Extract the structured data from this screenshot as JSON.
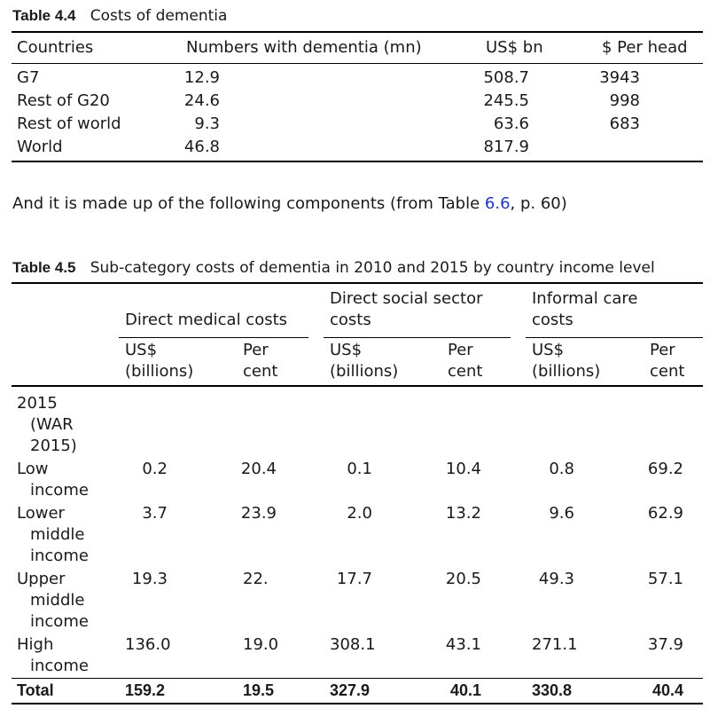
{
  "table44": {
    "label": "Table 4.4",
    "title": "Costs of dementia",
    "headers": [
      "Countries",
      "Numbers with dementia (mn)",
      "US$ bn",
      "$ Per head"
    ],
    "rows": [
      [
        "G7",
        "12.9",
        "508.7",
        "3943"
      ],
      [
        "Rest of G20",
        "24.6",
        "245.5",
        "998"
      ],
      [
        "Rest of world",
        "9.3",
        "63.6",
        "683"
      ],
      [
        "World",
        "46.8",
        "817.9",
        ""
      ]
    ]
  },
  "paragraph": {
    "before": "And it is made up of the following components (from Table ",
    "link": "6.6",
    "after": ", p. 60)"
  },
  "table45": {
    "label": "Table 4.5",
    "title": "Sub-category costs of dementia in 2010 and 2015 by country income level",
    "groups": [
      {
        "line1": "Direct medical costs",
        "line2": ""
      },
      {
        "line1": "Direct social sector",
        "line2": "costs"
      },
      {
        "line1": "Informal care",
        "line2": "costs"
      }
    ],
    "sub": {
      "usd1": "US$",
      "usd2": "(billions)",
      "pc1": "Per",
      "pc2": "cent"
    },
    "year": [
      "2015",
      "(WAR",
      "2015)"
    ],
    "rows": [
      {
        "label": [
          "Low",
          "income"
        ],
        "values": [
          "0.2",
          "20.4",
          "0.1",
          "10.4",
          "0.8",
          "69.2"
        ]
      },
      {
        "label": [
          "Lower",
          "middle",
          "income"
        ],
        "values": [
          "3.7",
          "23.9",
          "2.0",
          "13.2",
          "9.6",
          "62.9"
        ]
      },
      {
        "label": [
          "Upper",
          "middle",
          "income"
        ],
        "values": [
          "19.3",
          "22.",
          "17.7",
          "20.5",
          "49.3",
          "57.1"
        ]
      },
      {
        "label": [
          "High",
          "income"
        ],
        "values": [
          "136.0",
          "19.0",
          "308.1",
          "43.1",
          "271.1",
          "37.9"
        ]
      }
    ],
    "total": {
      "label": "Total",
      "values": [
        "159.2",
        "19.5",
        "327.9",
        "40.1",
        "330.8",
        "40.4"
      ]
    }
  }
}
